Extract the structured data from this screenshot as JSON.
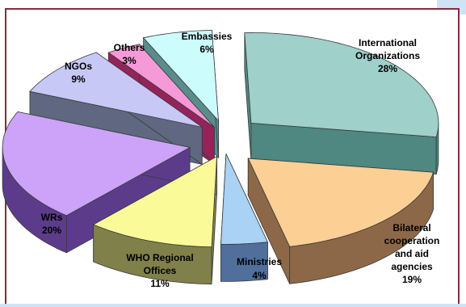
{
  "chart_data": {
    "type": "pie",
    "title": "",
    "style": "3d-exploded",
    "legend": "none",
    "slices": [
      {
        "id": "international-organizations",
        "label": [
          "International",
          "Organizations"
        ],
        "percent_label": "28%",
        "value": 28,
        "top_color": "#9fd0ca",
        "side_color": "#4e8880"
      },
      {
        "id": "bilateral",
        "label": [
          "Bilateral",
          "cooperation",
          "and aid",
          "agencies"
        ],
        "percent_label": "19%",
        "value": 19,
        "top_color": "#fccf95",
        "side_color": "#8d6848"
      },
      {
        "id": "ministries",
        "label": [
          "Ministries"
        ],
        "percent_label": "4%",
        "value": 4,
        "top_color": "#a9d2f4",
        "side_color": "#506f9b"
      },
      {
        "id": "who-regional-offices",
        "label": [
          "WHO Regional",
          "Offices"
        ],
        "percent_label": "11%",
        "value": 11,
        "top_color": "#fafa99",
        "side_color": "#80804b"
      },
      {
        "id": "wrs",
        "label": [
          "WRs"
        ],
        "percent_label": "20%",
        "value": 20,
        "top_color": "#cca3f8",
        "side_color": "#5c3c8a"
      },
      {
        "id": "ngos",
        "label": [
          "NGOs"
        ],
        "percent_label": "9%",
        "value": 9,
        "top_color": "#c8c8f6",
        "side_color": "#5f6880"
      },
      {
        "id": "others",
        "label": [
          "Others"
        ],
        "percent_label": "3%",
        "value": 3,
        "top_color": "#f59ad7",
        "side_color": "#92245a"
      },
      {
        "id": "embassies",
        "label": [
          "Embassies"
        ],
        "percent_label": "6%",
        "value": 6,
        "top_color": "#ccfcfc",
        "side_color": "#5a8c8c"
      }
    ]
  }
}
